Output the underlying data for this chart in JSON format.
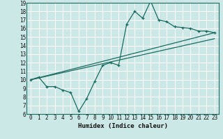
{
  "xlabel": "Humidex (Indice chaleur)",
  "background_color": "#cce8e6",
  "grid_color": "#ffffff",
  "line_color": "#1a6b60",
  "xlim": [
    -0.5,
    23.5
  ],
  "ylim": [
    6,
    19
  ],
  "xticks": [
    0,
    1,
    2,
    3,
    4,
    5,
    6,
    7,
    8,
    9,
    10,
    11,
    12,
    13,
    14,
    15,
    16,
    17,
    18,
    19,
    20,
    21,
    22,
    23
  ],
  "yticks": [
    6,
    7,
    8,
    9,
    10,
    11,
    12,
    13,
    14,
    15,
    16,
    17,
    18,
    19
  ],
  "line1_x": [
    0,
    1,
    2,
    3,
    4,
    5,
    6,
    7,
    8,
    9,
    10,
    11,
    12,
    13,
    14,
    15,
    16,
    17,
    18,
    19,
    20,
    21,
    22,
    23
  ],
  "line1_y": [
    10.0,
    10.3,
    9.2,
    9.2,
    8.8,
    8.5,
    6.3,
    7.8,
    9.8,
    11.7,
    12.0,
    11.7,
    16.5,
    18.0,
    17.2,
    19.2,
    17.0,
    16.8,
    16.2,
    16.1,
    16.0,
    15.7,
    15.7,
    15.5
  ],
  "line2_x": [
    0,
    23
  ],
  "line2_y": [
    10.0,
    15.5
  ],
  "line3_x": [
    0,
    23
  ],
  "line3_y": [
    10.0,
    14.8
  ],
  "xlabel_fontsize": 6.5,
  "tick_fontsize": 5.5
}
